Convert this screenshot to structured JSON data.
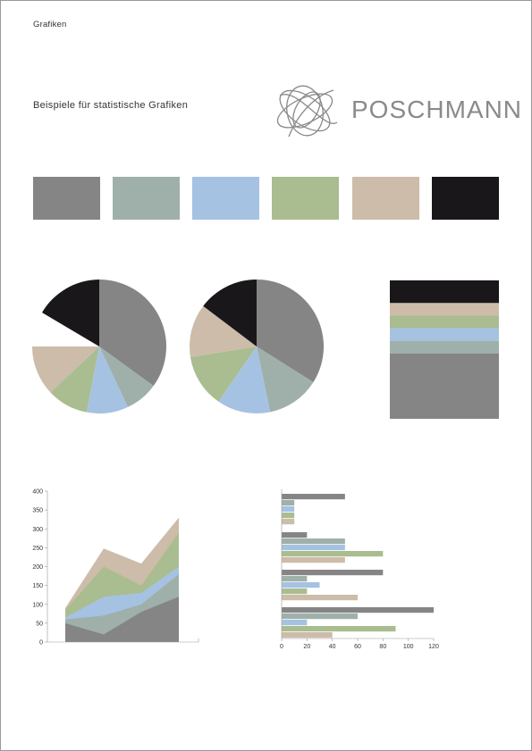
{
  "header": {
    "section": "Grafiken"
  },
  "intro": {
    "subtitle": "Beispiele für statistische Grafiken"
  },
  "logo": {
    "name": "POSCHMANN",
    "mark": "orbit-lines-icon"
  },
  "palette": {
    "colors": [
      {
        "name": "gray",
        "hex": "#858585"
      },
      {
        "name": "sage",
        "hex": "#9fb0ab"
      },
      {
        "name": "light-blue",
        "hex": "#a6c2e2"
      },
      {
        "name": "green",
        "hex": "#a9bd91"
      },
      {
        "name": "beige",
        "hex": "#cdbca9"
      },
      {
        "name": "black",
        "hex": "#1a171b"
      }
    ]
  },
  "chart_data": [
    {
      "type": "pie",
      "variant": "exploded",
      "values": [
        35,
        8,
        10,
        10,
        12,
        25
      ],
      "colors": [
        "#858585",
        "#9fb0ab",
        "#a6c2e2",
        "#a9bd91",
        "#cdbca9",
        "#1a171b"
      ]
    },
    {
      "type": "pie",
      "values": [
        37,
        14,
        14,
        14,
        14,
        16
      ],
      "colors": [
        "#858585",
        "#9fb0ab",
        "#a6c2e2",
        "#a9bd91",
        "#cdbca9",
        "#1a171b"
      ]
    },
    {
      "type": "bar",
      "variant": "100% stacked",
      "values": [
        18,
        10,
        10,
        10,
        10,
        52
      ],
      "colors": [
        "#1a171b",
        "#cdbca9",
        "#a9bd91",
        "#a6c2e2",
        "#9fb0ab",
        "#858585"
      ]
    },
    {
      "type": "area",
      "variant": "overlapping",
      "x": [
        1,
        2,
        3,
        4
      ],
      "ylim": [
        0,
        400
      ],
      "yticks": [
        0,
        50,
        100,
        150,
        200,
        250,
        300,
        350,
        400
      ],
      "series": [
        {
          "color": "#cdbca9",
          "values": [
            90,
            248,
            208,
            330
          ]
        },
        {
          "color": "#a9bd91",
          "values": [
            85,
            200,
            150,
            290
          ]
        },
        {
          "color": "#a6c2e2",
          "values": [
            65,
            120,
            130,
            200
          ]
        },
        {
          "color": "#9fb0ab",
          "values": [
            60,
            70,
            100,
            180
          ]
        },
        {
          "color": "#858585",
          "values": [
            50,
            20,
            80,
            120
          ]
        }
      ]
    },
    {
      "type": "bar",
      "variant": "horizontal grouped",
      "xlim": [
        0,
        120
      ],
      "xticks": [
        0,
        20,
        40,
        60,
        80,
        100,
        120
      ],
      "colors": [
        "#858585",
        "#9fb0ab",
        "#a6c2e2",
        "#a9bd91",
        "#cdbca9"
      ],
      "groups": [
        [
          50,
          10,
          10,
          10,
          10
        ],
        [
          20,
          50,
          50,
          80,
          50
        ],
        [
          80,
          20,
          30,
          20,
          60
        ],
        [
          120,
          60,
          20,
          90,
          40
        ]
      ]
    }
  ]
}
